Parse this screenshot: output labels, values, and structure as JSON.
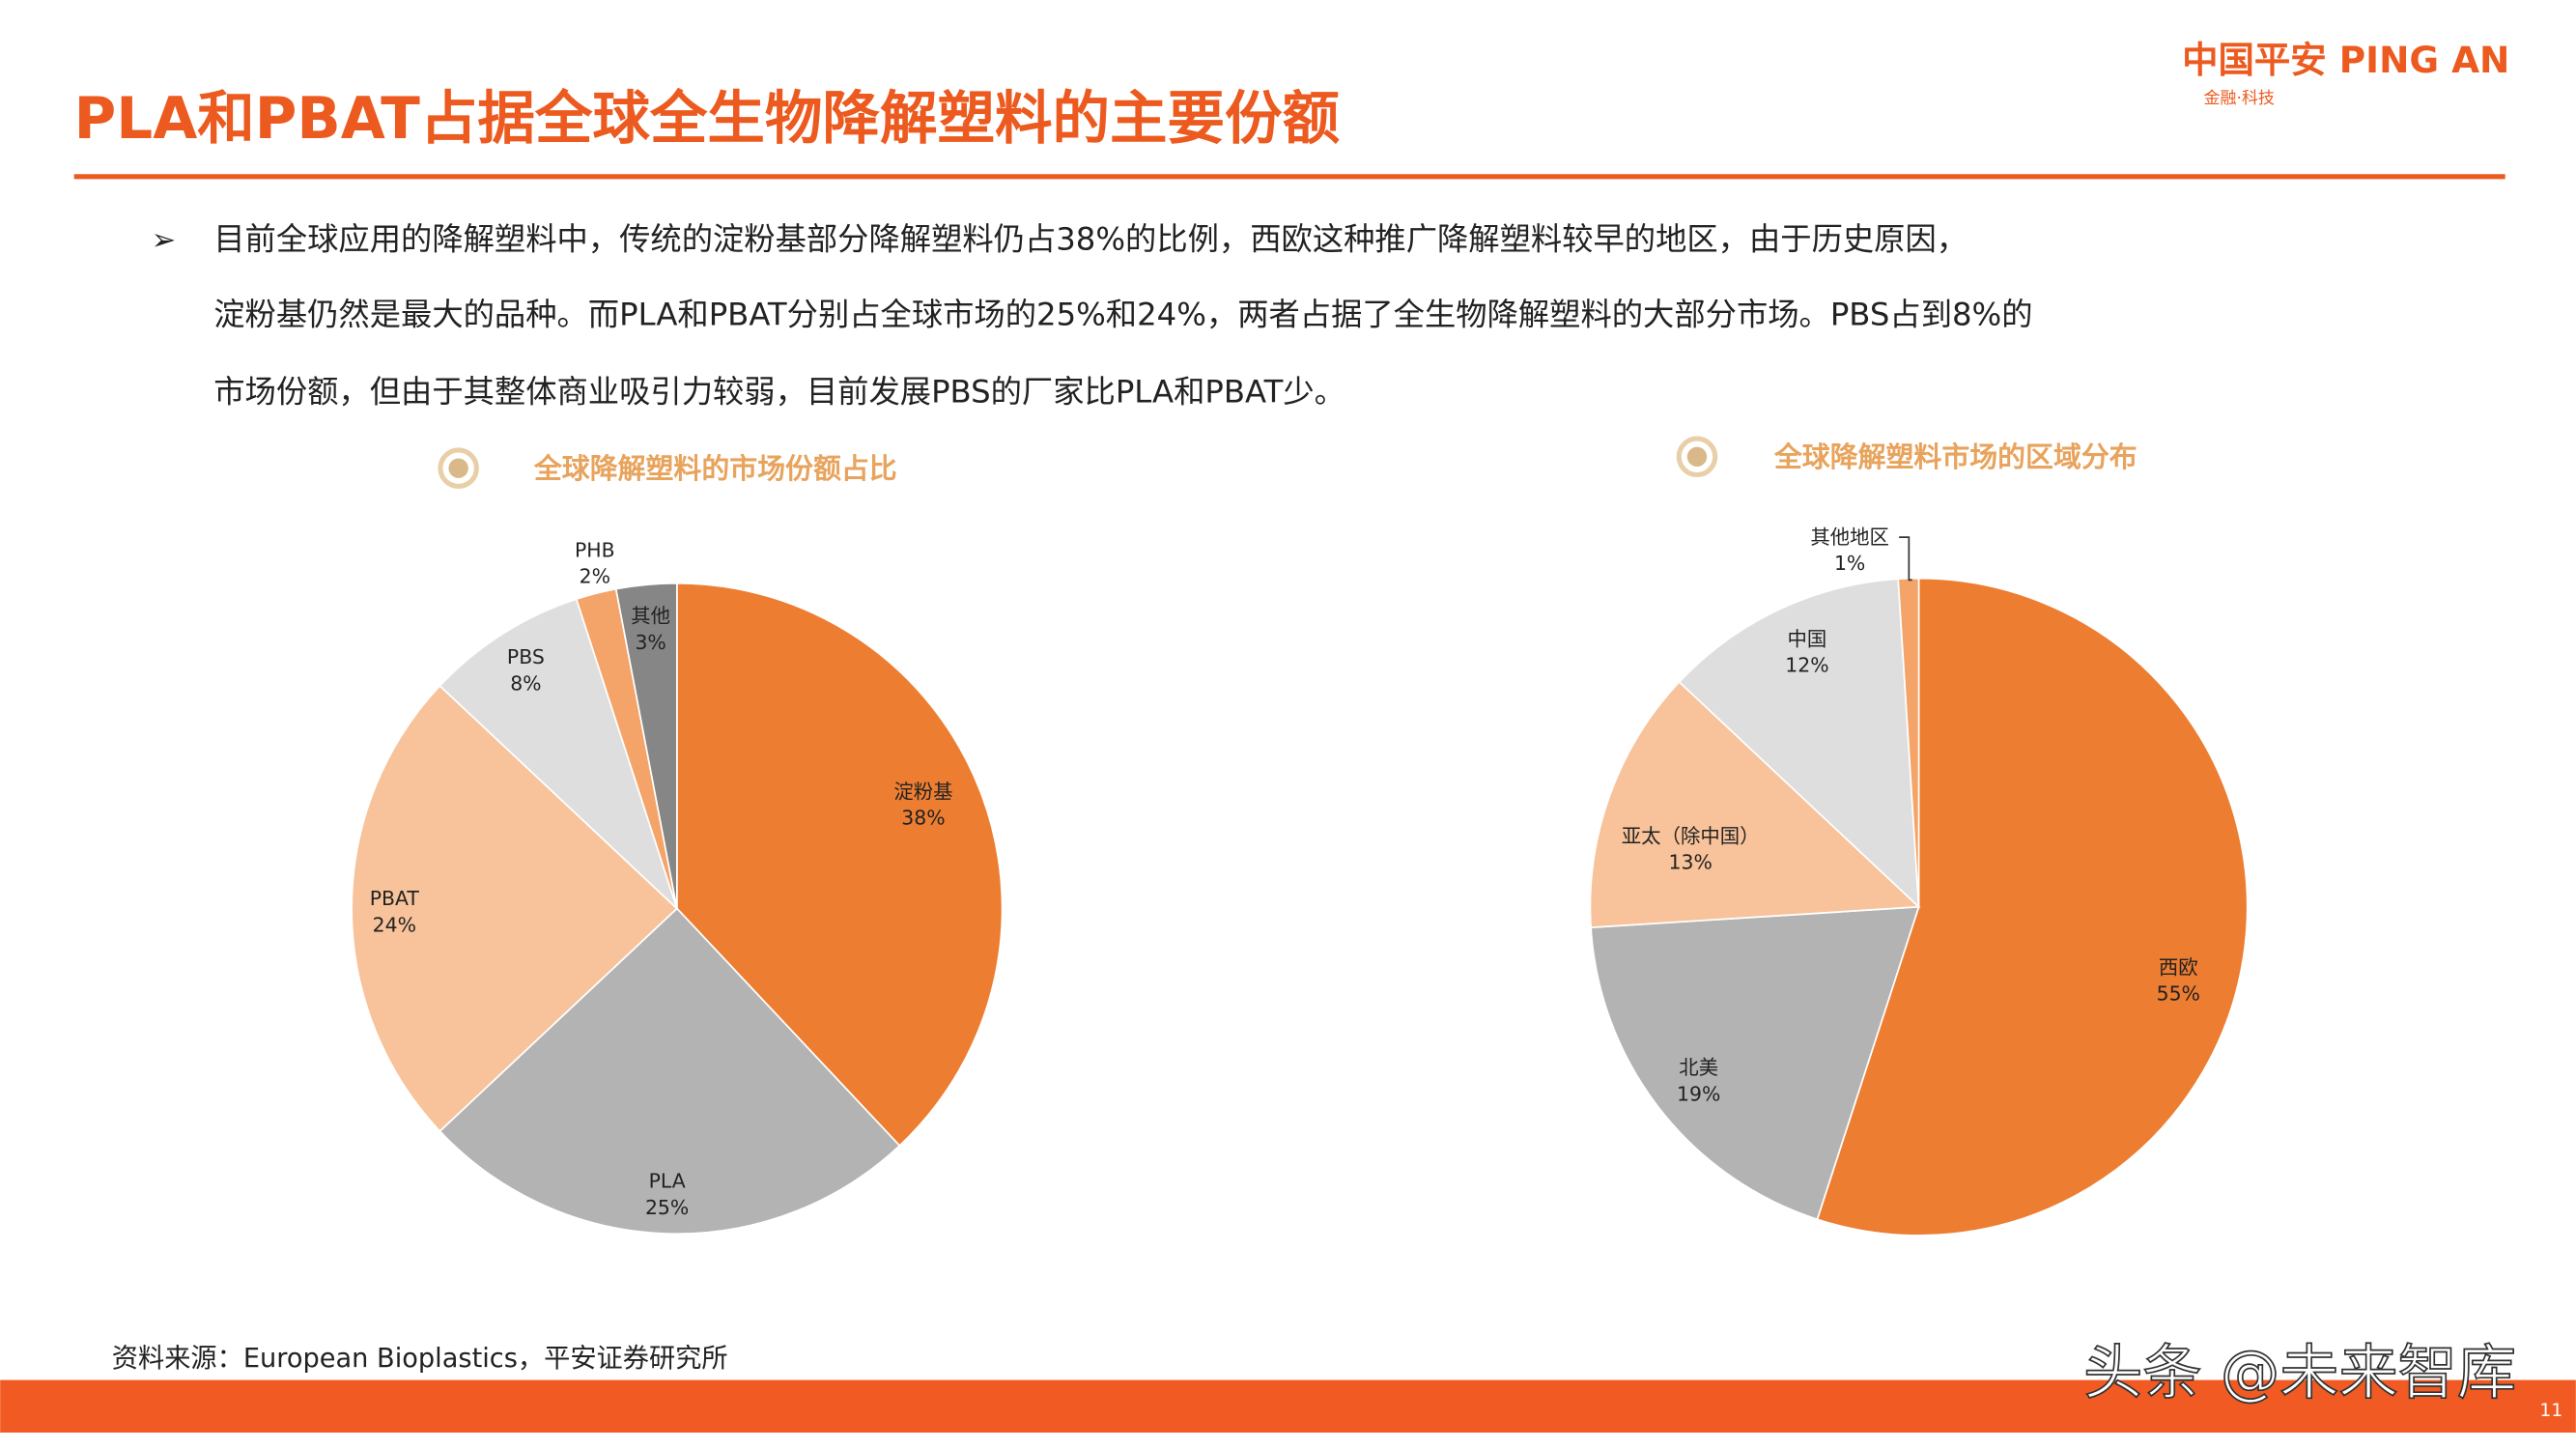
{
  "header": {
    "title": "PLA和PBAT占据全球全生物降解塑料的主要份额",
    "logo": "中国平安 PING AN",
    "logo_tagline": "金融·科技"
  },
  "body": {
    "bullet": "➢",
    "lines": [
      "目前全球应用的降解塑料中，传统的淀粉基部分降解塑料仍占38%的比例，西欧这种推广降解塑料较早的地区，由于历史原因，",
      "淀粉基仍然是最大的品种。而PLA和PBAT分别占全球市场的25%和24%，两者占据了全生物降解塑料的大部分市场。PBS占到8%的",
      "市场份额，但由于其整体商业吸引力较弱，目前发展PBS的厂家比PLA和PBAT少。"
    ]
  },
  "chart_data": [
    {
      "type": "pie",
      "title": "全球降解塑料的市场份额占比",
      "categories": [
        "淀粉基",
        "PLA",
        "PBAT",
        "PBS",
        "PHB",
        "其他"
      ],
      "values": [
        38,
        25,
        24,
        8,
        2,
        3
      ],
      "value_labels": [
        "38%",
        "25%",
        "24%",
        "8%",
        "2%",
        "3%"
      ],
      "colors": [
        "#ed7d31",
        "#b3b3b3",
        "#f8c39b",
        "#dedede",
        "#f4a468",
        "#868686"
      ]
    },
    {
      "type": "pie",
      "title": "全球降解塑料市场的区域分布",
      "categories": [
        "西欧",
        "北美",
        "亚太（除中国）",
        "中国",
        "其他地区"
      ],
      "values": [
        55,
        19,
        13,
        12,
        1
      ],
      "value_labels": [
        "55%",
        "19%",
        "13%",
        "12%",
        "1%"
      ],
      "colors": [
        "#ed7d31",
        "#b3b3b3",
        "#f8c39b",
        "#dedede",
        "#f4a468"
      ]
    }
  ],
  "footer": {
    "source": "资料来源：European Bioplastics，平安证券研究所",
    "watermark": "头条 @未来智库",
    "page_number": "11"
  }
}
